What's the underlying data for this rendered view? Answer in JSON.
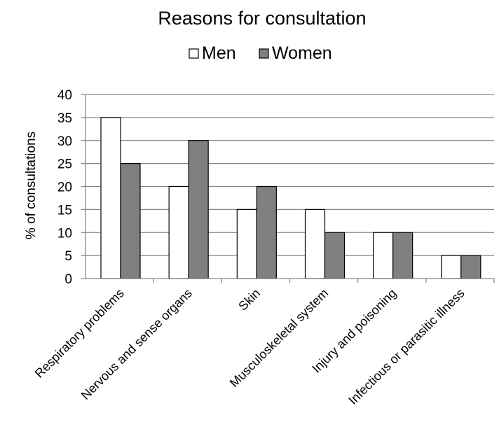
{
  "chart_data": {
    "type": "bar",
    "title": "Reasons for consultation",
    "ylabel": "% of consultations",
    "xlabel": "",
    "ylim": [
      0,
      40
    ],
    "yticks": [
      0,
      5,
      10,
      15,
      20,
      25,
      30,
      35,
      40
    ],
    "grid": true,
    "legend_position": "top",
    "categories": [
      "Respiratory problems",
      "Nervous and sense organs",
      "Skin",
      "Musculoskeletal system",
      "Injury and poisoning",
      "Infectious or parasitic illness"
    ],
    "series": [
      {
        "name": "Men",
        "color": "#ffffff",
        "values": [
          35,
          20,
          15,
          15,
          10,
          5
        ]
      },
      {
        "name": "Women",
        "color": "#808080",
        "values": [
          25,
          30,
          20,
          10,
          10,
          5
        ]
      }
    ]
  }
}
